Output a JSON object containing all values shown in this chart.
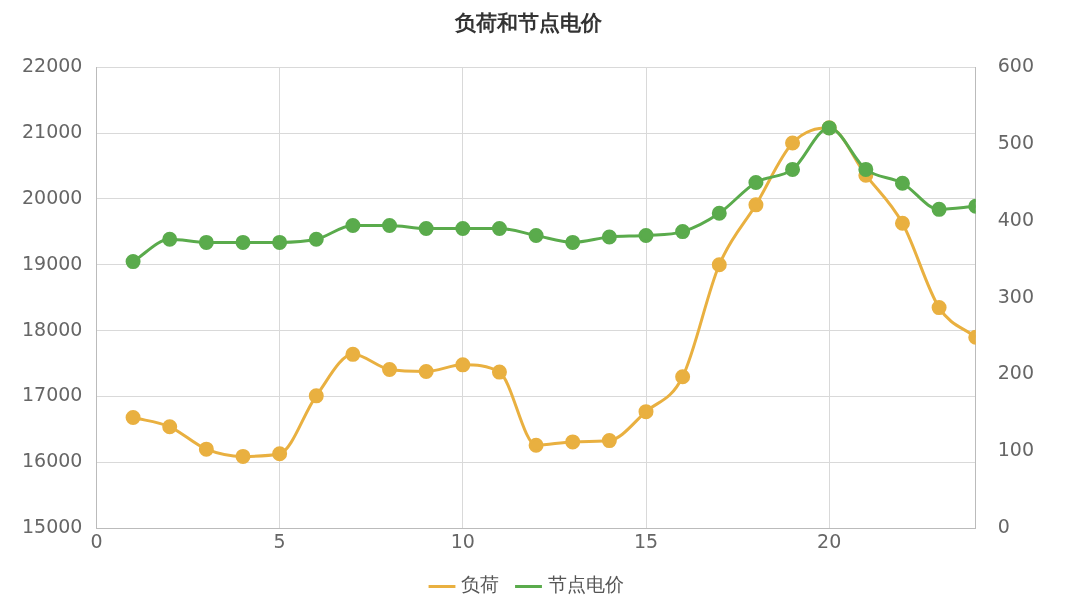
{
  "chart_data": {
    "type": "line",
    "title": "负荷和节点电价",
    "x": [
      1,
      2,
      3,
      4,
      5,
      6,
      7,
      8,
      9,
      10,
      11,
      12,
      13,
      14,
      15,
      16,
      17,
      18,
      19,
      20,
      21,
      22,
      23,
      24
    ],
    "series": [
      {
        "name": "负荷",
        "color": "#e9b040",
        "values": [
          16680,
          16540,
          16200,
          16090,
          16130,
          17010,
          17640,
          17410,
          17380,
          17480,
          17370,
          16260,
          16310,
          16330,
          16770,
          17300,
          19000,
          19910,
          20850,
          21080,
          20360,
          19630,
          18350,
          17900
        ]
      },
      {
        "name": "节点电价",
        "color": "#5aab4c",
        "axis": "y2",
        "values": [
          347,
          376,
          372,
          372,
          372,
          376,
          394,
          394,
          390,
          390,
          390,
          381,
          372,
          379,
          381,
          386,
          410,
          450,
          467,
          521,
          467,
          449,
          415,
          419
        ]
      }
    ],
    "xlim": [
      0,
      24
    ],
    "xticks": [
      0,
      5,
      10,
      15,
      20
    ],
    "ylim": [
      15000,
      22000
    ],
    "yticks": [
      15000,
      16000,
      17000,
      18000,
      19000,
      20000,
      21000,
      22000
    ],
    "y2lim": [
      0,
      600
    ],
    "y2ticks": [
      0,
      100,
      200,
      300,
      400,
      500,
      600
    ],
    "grid": true,
    "legend": "bottom",
    "marker": "circle",
    "line_style": "solid"
  }
}
